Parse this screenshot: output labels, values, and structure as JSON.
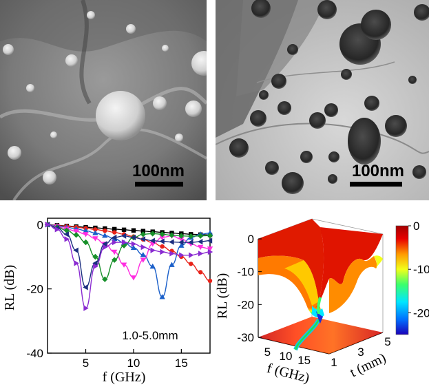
{
  "figure": {
    "sem_panel": {
      "scale_bar_label": "100nm"
    },
    "tem_panel": {
      "scale_bar_label": "100nm"
    },
    "rl_curves_panel": {
      "chart_data": {
        "type": "line",
        "xlabel": "f (GHz)",
        "ylabel": "RL (dB)",
        "annotation": "1.0-5.0mm",
        "xlim": [
          1,
          18
        ],
        "ylim": [
          -40,
          2
        ],
        "x_ticks": [
          5,
          10,
          15
        ],
        "y_ticks": [
          0,
          -20,
          -40
        ],
        "x": [
          1,
          2,
          3,
          4,
          5,
          6,
          7,
          8,
          9,
          10,
          11,
          12,
          13,
          14,
          15,
          16,
          17,
          18
        ],
        "series": [
          {
            "color": "#000000",
            "values": [
              0,
              -0.2,
              -0.4,
              -0.6,
              -0.8,
              -1.0,
              -1.2,
              -1.4,
              -1.6,
              -1.8,
              -2.0,
              -2.2,
              -2.4,
              -2.6,
              -2.8,
              -3.0,
              -3.1,
              -3.2
            ]
          },
          {
            "color": "#e8231a",
            "values": [
              0,
              -0.3,
              -0.5,
              -0.8,
              -1.1,
              -1.5,
              -1.9,
              -2.4,
              -3.0,
              -3.7,
              -4.6,
              -5.6,
              -6.8,
              -8.2,
              -10.0,
              -12.2,
              -14.8,
              -17.5
            ]
          },
          {
            "color": "#1a5fc9",
            "values": [
              0,
              -0.4,
              -0.8,
              -1.3,
              -1.9,
              -2.6,
              -3.4,
              -4.4,
              -5.6,
              -7.2,
              -9.4,
              -13.0,
              -22.5,
              -12.5,
              -6.5,
              -4.0,
              -3.0,
              -2.6
            ]
          },
          {
            "color": "#ff2ee0",
            "values": [
              0,
              -0.6,
              -1.3,
              -2.1,
              -3.0,
              -4.3,
              -6.0,
              -8.5,
              -12.5,
              -16.5,
              -11.0,
              -6.0,
              -4.0,
              -3.5,
              -4.5,
              -6.0,
              -7.0,
              -7.5
            ]
          },
          {
            "color": "#17902a",
            "values": [
              0,
              -0.8,
              -1.8,
              -3.2,
              -5.5,
              -10.0,
              -17.0,
              -11.0,
              -6.5,
              -4.0,
              -3.0,
              -2.8,
              -3.0,
              -3.3,
              -3.5,
              -3.6,
              -3.5,
              -3.4
            ]
          },
          {
            "color": "#1c2f80",
            "values": [
              0,
              -1.0,
              -3.0,
              -8.0,
              -19.5,
              -12.0,
              -6.0,
              -4.0,
              -3.5,
              -4.0,
              -4.5,
              -5.0,
              -5.2,
              -5.4,
              -5.5,
              -5.5,
              -5.3,
              -5.0
            ]
          },
          {
            "color": "#8a2bd1",
            "values": [
              0,
              -1.5,
              -4.5,
              -12.0,
              -26.0,
              -13.0,
              -7.0,
              -5.5,
              -5.5,
              -6.0,
              -7.0,
              -8.0,
              -8.5,
              -9.0,
              -9.5,
              -9.5,
              -9.0,
              -8.5
            ]
          }
        ]
      }
    },
    "surface_panel": {
      "chart_data": {
        "type": "heatmap",
        "zlabel": "RL (dB)",
        "xlabel": "f (GHz)",
        "ylabel": "t (mm)",
        "z_ticks": [
          0,
          -10,
          -20,
          -30
        ],
        "f_ticks": [
          5,
          10,
          15
        ],
        "t_ticks": [
          1,
          3,
          5
        ],
        "colorbar_ticks": [
          0,
          -10,
          -20
        ],
        "colorbar_range": [
          -25,
          0
        ],
        "colors": [
          "#1a00b8",
          "#0070ff",
          "#00e6ff",
          "#3cff6c",
          "#f2ff1a",
          "#ff9a00",
          "#e80000",
          "#a40000"
        ]
      }
    }
  }
}
